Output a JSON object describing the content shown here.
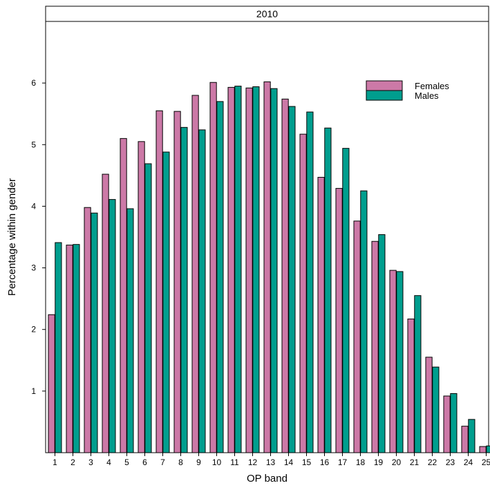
{
  "chart_data": {
    "type": "bar",
    "panel_title": "2010",
    "xlabel": "OP band",
    "ylabel": "Percentage within gender",
    "categories": [
      "1",
      "2",
      "3",
      "4",
      "5",
      "6",
      "7",
      "8",
      "9",
      "10",
      "11",
      "12",
      "13",
      "14",
      "15",
      "16",
      "17",
      "18",
      "19",
      "20",
      "21",
      "22",
      "23",
      "24",
      "25"
    ],
    "y_ticks": [
      1,
      2,
      3,
      4,
      5,
      6
    ],
    "ylim": [
      0,
      7
    ],
    "legend_position": "top-right",
    "grid": false,
    "series": [
      {
        "name": "Females",
        "color": "#cc79a7",
        "values": [
          2.24,
          3.37,
          3.98,
          4.52,
          5.1,
          5.05,
          5.55,
          5.54,
          5.8,
          6.01,
          5.93,
          5.92,
          6.02,
          5.74,
          5.17,
          4.47,
          4.29,
          3.76,
          3.43,
          2.96,
          2.17,
          1.55,
          0.92,
          0.43,
          0.1
        ]
      },
      {
        "name": "Males",
        "color": "#009e8e",
        "values": [
          3.41,
          3.38,
          3.89,
          4.11,
          3.96,
          4.69,
          4.88,
          5.28,
          5.24,
          5.7,
          5.95,
          5.94,
          5.91,
          5.62,
          5.53,
          5.27,
          4.94,
          4.25,
          3.54,
          2.94,
          2.55,
          1.39,
          0.96,
          0.54,
          0.11
        ]
      }
    ]
  }
}
